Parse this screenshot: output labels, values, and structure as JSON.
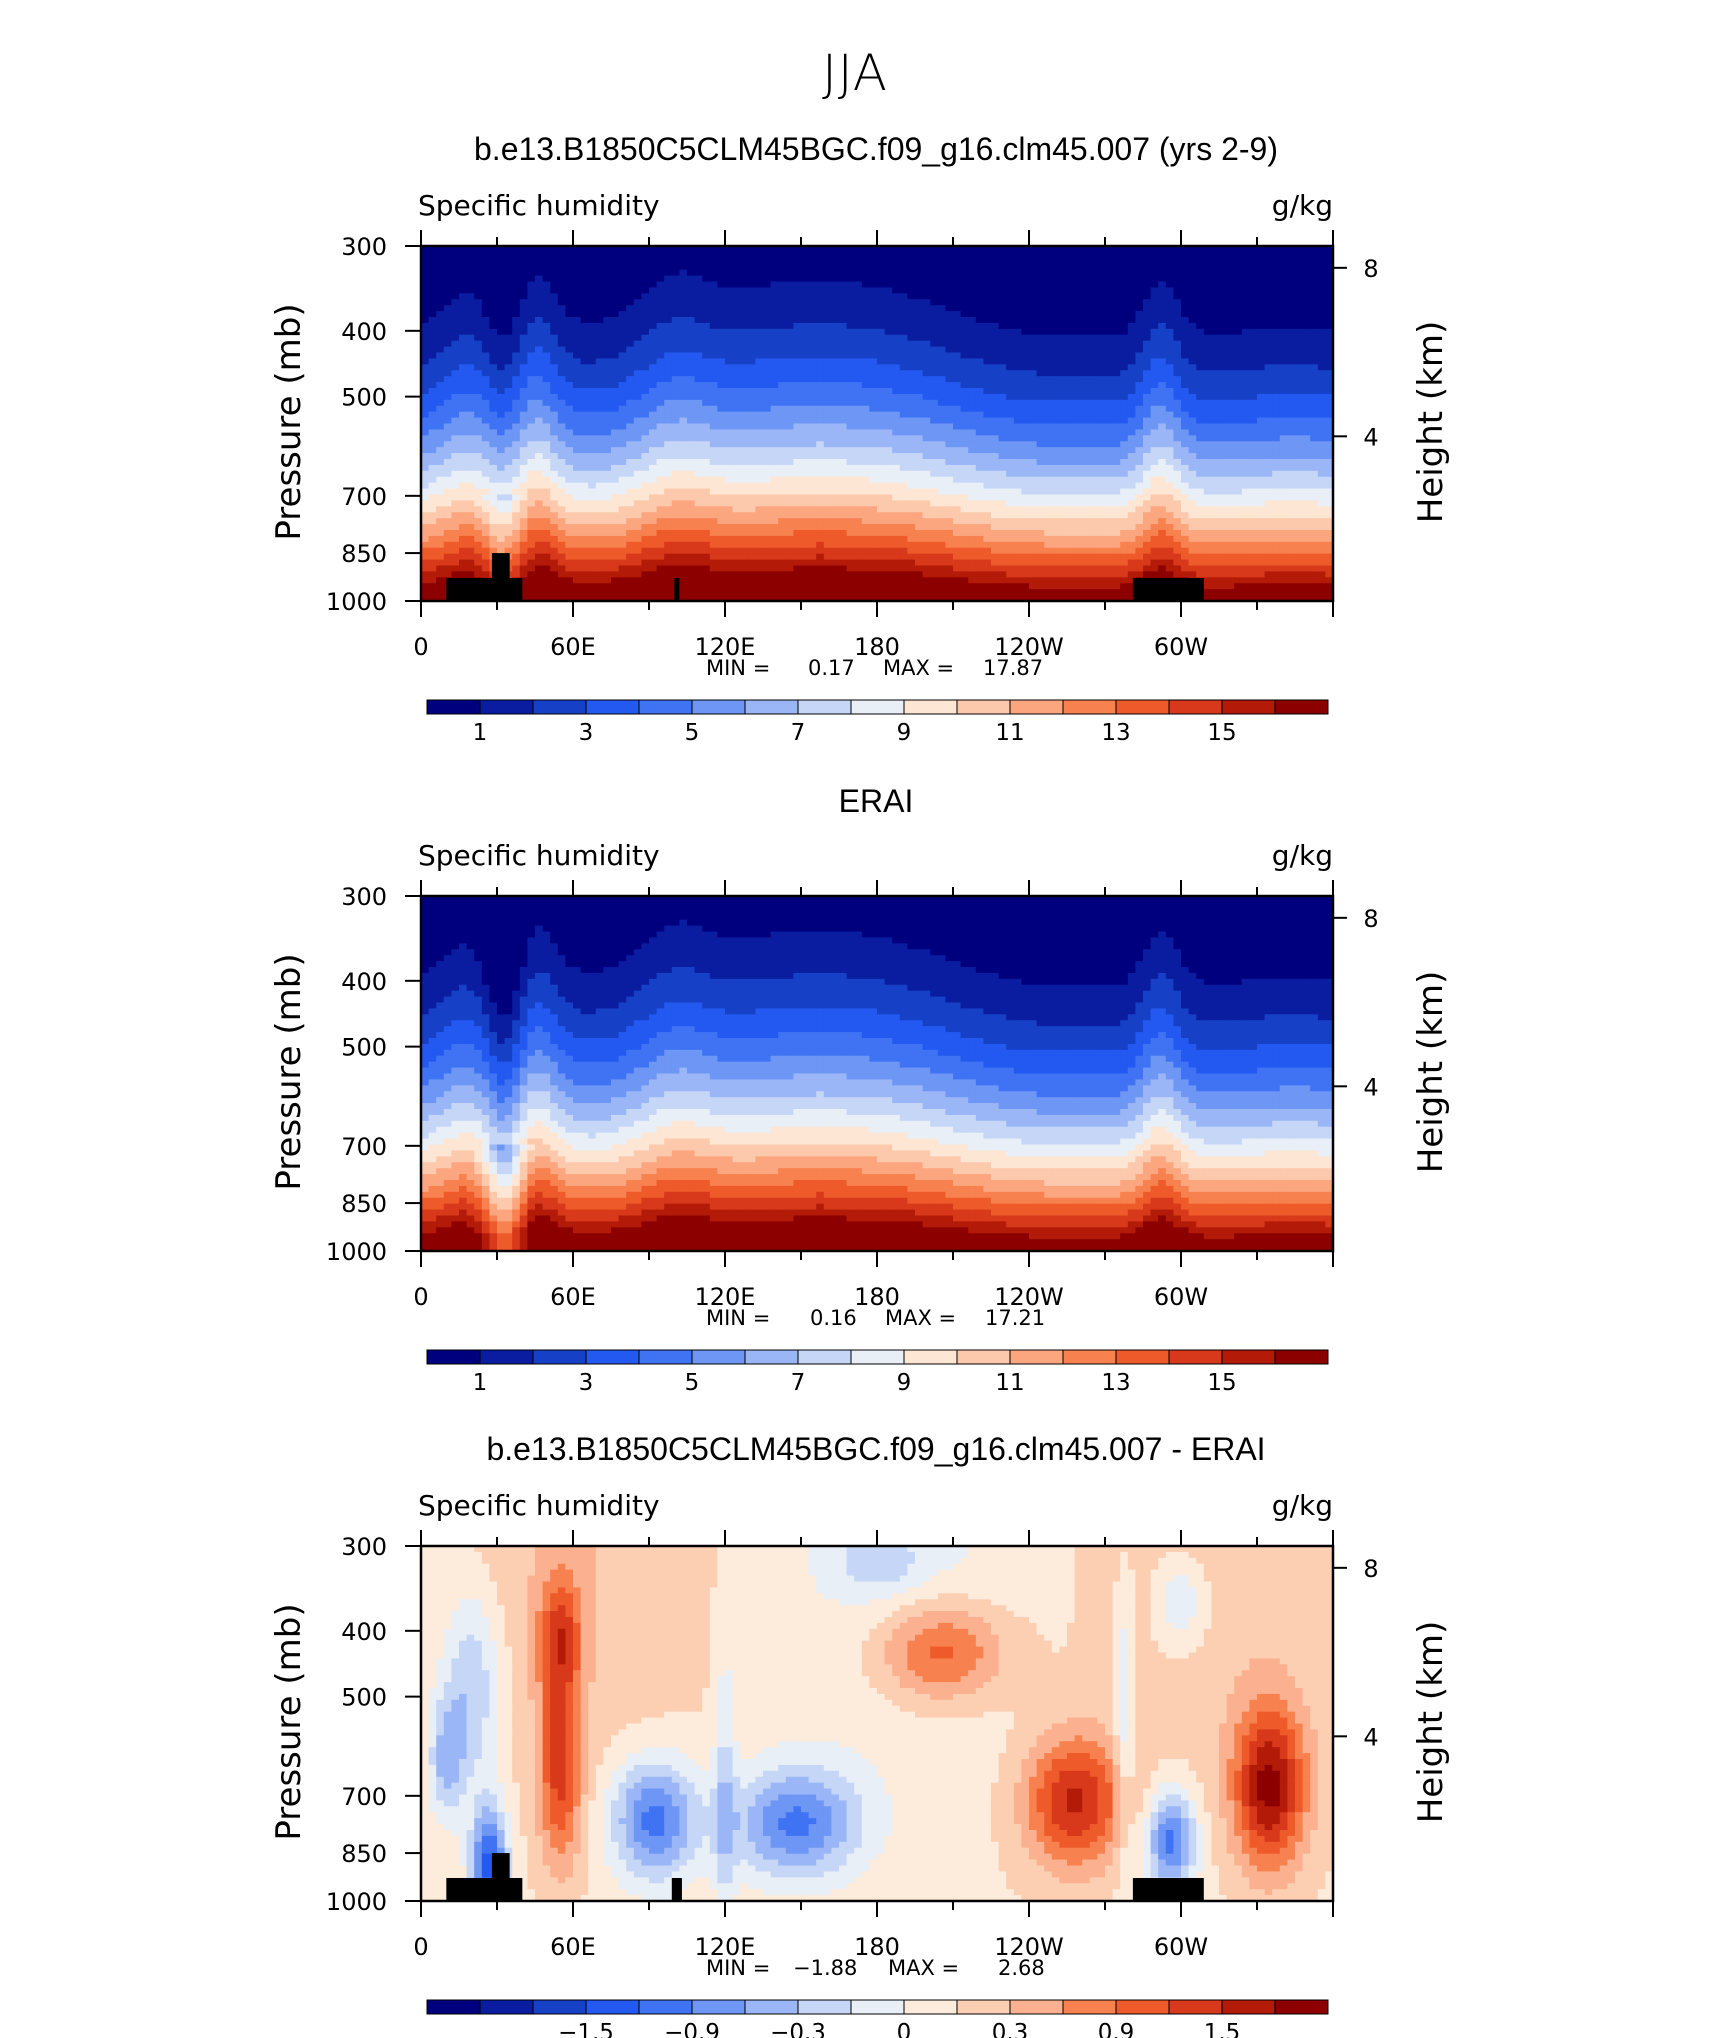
{
  "figure": {
    "title": "JJA"
  },
  "colors": {
    "positive_scale": [
      "#00007f",
      "#0a1da0",
      "#1641c6",
      "#2359f0",
      "#3f73f4",
      "#6d96f5",
      "#9ab6f6",
      "#c6d6f7",
      "#e9eff7",
      "#fde6d3",
      "#fcc9ad",
      "#fca680",
      "#f7814f",
      "#ef5a2a",
      "#d7391a",
      "#b31a08",
      "#8c0000"
    ],
    "diff_scale": [
      "#00007f",
      "#0a1da0",
      "#1641c6",
      "#2359f0",
      "#3f73f4",
      "#6d96f5",
      "#9ab6f6",
      "#c6d6f7",
      "#e9eff7",
      "#fdebdc",
      "#fccfb3",
      "#fbb18f",
      "#f7814f",
      "#ef5a2a",
      "#d7391a",
      "#b31a08",
      "#8c0000"
    ],
    "topography": "#000000"
  },
  "chart_data": [
    {
      "type": "heatmap",
      "panel_title": "b.e13.B1850C5CLM45BGC.f09_g16.clm45.007 (yrs 2-9)",
      "variable_label": "Specific humidity",
      "units_label": "g/kg",
      "ylabel": "Pressure (mb)",
      "ylabel_right": "Height (km)",
      "x_ticks": [
        "0",
        "60E",
        "120E",
        "180",
        "120W",
        "60W"
      ],
      "x_tick_lon": [
        0,
        60,
        120,
        180,
        240,
        300
      ],
      "xlim": [
        0,
        360
      ],
      "y_ticks": [
        "300",
        "400",
        "500",
        "700",
        "850",
        "1000"
      ],
      "y_tick_p": [
        300,
        400,
        500,
        700,
        850,
        1000
      ],
      "ylim": [
        1000,
        300
      ],
      "right_ticks": [
        "8",
        "4"
      ],
      "right_tick_km": [
        8,
        4
      ],
      "min_label": "MIN =",
      "min_value": "0.17",
      "max_label": "MAX =",
      "max_value": "17.87",
      "colorbar_labels": [
        "1",
        "3",
        "5",
        "7",
        "9",
        "11",
        "13",
        "15"
      ],
      "levels": [
        0,
        1,
        2,
        3,
        4,
        5,
        6,
        7,
        8,
        9,
        10,
        11,
        12,
        13,
        14,
        15,
        16,
        17
      ],
      "field": "model",
      "topography": [
        {
          "lon0": 10,
          "lon1": 40,
          "p_top": 925
        },
        {
          "lon0": 28,
          "lon1": 35,
          "p_top": 850
        },
        {
          "lon0": 100,
          "lon1": 102,
          "p_top": 925
        },
        {
          "lon0": 281,
          "lon1": 309,
          "p_top": 925
        }
      ]
    },
    {
      "type": "heatmap",
      "panel_title": "ERAI",
      "variable_label": "Specific humidity",
      "units_label": "g/kg",
      "ylabel": "Pressure (mb)",
      "ylabel_right": "Height (km)",
      "x_ticks": [
        "0",
        "60E",
        "120E",
        "180",
        "120W",
        "60W"
      ],
      "x_tick_lon": [
        0,
        60,
        120,
        180,
        240,
        300
      ],
      "xlim": [
        0,
        360
      ],
      "y_ticks": [
        "300",
        "400",
        "500",
        "700",
        "850",
        "1000"
      ],
      "y_tick_p": [
        300,
        400,
        500,
        700,
        850,
        1000
      ],
      "ylim": [
        1000,
        300
      ],
      "right_ticks": [
        "8",
        "4"
      ],
      "right_tick_km": [
        8,
        4
      ],
      "min_label": "MIN =",
      "min_value": "0.16",
      "max_label": "MAX =",
      "max_value": "17.21",
      "colorbar_labels": [
        "1",
        "3",
        "5",
        "7",
        "9",
        "11",
        "13",
        "15"
      ],
      "levels": [
        0,
        1,
        2,
        3,
        4,
        5,
        6,
        7,
        8,
        9,
        10,
        11,
        12,
        13,
        14,
        15,
        16,
        17
      ],
      "field": "obs",
      "topography": []
    },
    {
      "type": "heatmap",
      "panel_title": "b.e13.B1850C5CLM45BGC.f09_g16.clm45.007 - ERAI",
      "variable_label": "Specific humidity",
      "units_label": "g/kg",
      "ylabel": "Pressure (mb)",
      "ylabel_right": "Height (km)",
      "x_ticks": [
        "0",
        "60E",
        "120E",
        "180",
        "120W",
        "60W"
      ],
      "x_tick_lon": [
        0,
        60,
        120,
        180,
        240,
        300
      ],
      "xlim": [
        0,
        360
      ],
      "y_ticks": [
        "300",
        "400",
        "500",
        "700",
        "850",
        "1000"
      ],
      "y_tick_p": [
        300,
        400,
        500,
        700,
        850,
        1000
      ],
      "ylim": [
        1000,
        300
      ],
      "right_ticks": [
        "8",
        "4"
      ],
      "right_tick_km": [
        8,
        4
      ],
      "min_label": "MIN =",
      "min_value": "−1.88",
      "max_label": "MAX =",
      "max_value": "2.68",
      "colorbar_labels": [
        "−1.5",
        "−0.9",
        "−0.3",
        "0",
        "0.3",
        "0.9",
        "1.5"
      ],
      "levels": [
        -2.4,
        -2.1,
        -1.8,
        -1.5,
        -1.2,
        -0.9,
        -0.6,
        -0.3,
        0,
        0.3,
        0.6,
        0.9,
        1.2,
        1.5,
        1.8,
        2.1,
        2.4,
        2.7
      ],
      "field": "diff",
      "topography": [
        {
          "lon0": 10,
          "lon1": 40,
          "p_top": 925
        },
        {
          "lon0": 28,
          "lon1": 35,
          "p_top": 850
        },
        {
          "lon0": 99,
          "lon1": 103,
          "p_top": 925
        },
        {
          "lon0": 281,
          "lon1": 309,
          "p_top": 925
        }
      ]
    }
  ]
}
